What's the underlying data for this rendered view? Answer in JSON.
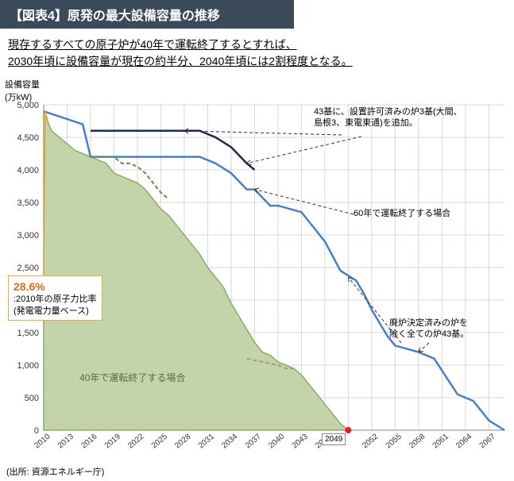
{
  "title": "【図表4】原発の最大設備容量の推移",
  "subtitle_l1": "現存するすべての原子炉が40年で運転終了するとすれば、",
  "subtitle_l2": "2030年頃に設備容量が現在の約半分、2040年頃には2割程度となる。",
  "ylabel_l1": "設備容量",
  "ylabel_l2": "(万kW)",
  "source": "(出所: 資源エネルギー庁)",
  "chart": {
    "type": "line+area",
    "xlim": [
      2010,
      2069
    ],
    "ylim": [
      0,
      5000
    ],
    "ytick_step": 500,
    "xticks": [
      2010,
      2013,
      2016,
      2019,
      2022,
      2025,
      2028,
      2031,
      2034,
      2037,
      2040,
      2043,
      2046,
      2049,
      2052,
      2055,
      2058,
      2061,
      2064,
      2067
    ],
    "yticks": [
      0,
      500,
      1000,
      1500,
      2000,
      2500,
      3000,
      3500,
      4000,
      4500,
      5000
    ],
    "background_color": "#ffffff",
    "grid_color": "#d8d8d8",
    "axis_color": "#888888",
    "area_color": "#c2d4a8",
    "area_edge_color": "#8fa86c",
    "line_blue": "#4a7fc4",
    "line_navy": "#1a2a4a",
    "line_green_dash": "#6a8a4a",
    "line_khaki_dash": "#a0a060",
    "callout_border": "#e6a64a",
    "callout_text": "#d4691a",
    "red_dot": "#e02020",
    "series_area_40yr": [
      [
        2010,
        4900
      ],
      [
        2011,
        4600
      ],
      [
        2012,
        4500
      ],
      [
        2013,
        4400
      ],
      [
        2014,
        4300
      ],
      [
        2015,
        4250
      ],
      [
        2016,
        4200
      ],
      [
        2017,
        4150
      ],
      [
        2018,
        4100
      ],
      [
        2019,
        3950
      ],
      [
        2020,
        3900
      ],
      [
        2021,
        3850
      ],
      [
        2022,
        3800
      ],
      [
        2023,
        3700
      ],
      [
        2024,
        3550
      ],
      [
        2025,
        3400
      ],
      [
        2026,
        3300
      ],
      [
        2027,
        3150
      ],
      [
        2028,
        3000
      ],
      [
        2029,
        2850
      ],
      [
        2030,
        2700
      ],
      [
        2031,
        2500
      ],
      [
        2032,
        2350
      ],
      [
        2033,
        2200
      ],
      [
        2034,
        1950
      ],
      [
        2035,
        1750
      ],
      [
        2036,
        1550
      ],
      [
        2037,
        1350
      ],
      [
        2038,
        1200
      ],
      [
        2039,
        1150
      ],
      [
        2040,
        1050
      ],
      [
        2041,
        1000
      ],
      [
        2042,
        950
      ],
      [
        2043,
        850
      ],
      [
        2044,
        700
      ],
      [
        2045,
        550
      ],
      [
        2046,
        400
      ],
      [
        2047,
        250
      ],
      [
        2048,
        100
      ],
      [
        2049,
        0
      ]
    ],
    "series_blue_60yr": [
      [
        2010,
        4900
      ],
      [
        2015,
        4700
      ],
      [
        2016,
        4200
      ],
      [
        2030,
        4200
      ],
      [
        2032,
        4100
      ],
      [
        2034,
        3950
      ],
      [
        2036,
        3700
      ],
      [
        2037,
        3700
      ],
      [
        2039,
        3450
      ],
      [
        2040,
        3450
      ],
      [
        2043,
        3350
      ],
      [
        2044,
        3200
      ],
      [
        2046,
        2900
      ],
      [
        2048,
        2450
      ],
      [
        2050,
        2300
      ],
      [
        2051,
        2100
      ],
      [
        2052,
        1850
      ],
      [
        2054,
        1450
      ],
      [
        2055,
        1300
      ],
      [
        2058,
        1200
      ],
      [
        2060,
        1100
      ],
      [
        2063,
        550
      ],
      [
        2065,
        450
      ],
      [
        2067,
        150
      ],
      [
        2069,
        0
      ]
    ],
    "series_navy_add3": [
      [
        2016,
        4600
      ],
      [
        2030,
        4600
      ],
      [
        2032,
        4500
      ],
      [
        2034,
        4350
      ],
      [
        2036,
        4100
      ],
      [
        2037,
        4000
      ]
    ],
    "series_green_dash": [
      [
        2016,
        4200
      ],
      [
        2019,
        4200
      ],
      [
        2020,
        4100
      ],
      [
        2021,
        4100
      ],
      [
        2022,
        4050
      ],
      [
        2023,
        3950
      ],
      [
        2024,
        3800
      ],
      [
        2025,
        3650
      ],
      [
        2026,
        3550
      ]
    ],
    "series_khaki_dash": [
      [
        2036,
        1100
      ],
      [
        2040,
        1000
      ],
      [
        2041,
        950
      ],
      [
        2042,
        950
      ]
    ]
  },
  "callout": {
    "pct": "28.6%",
    "l1": ":2010年の原子力比率",
    "l2": "(発電電力量ベース)"
  },
  "area_label": "40年で運転終了する場合",
  "ann_top": {
    "l1": "43基に、設置許可済みの炉3基(大間、",
    "l2": "島根3、東電東通)を追加。"
  },
  "ann_mid": "60年で運転終了する場合",
  "ann_bot": {
    "l1": "廃炉決定済みの炉を",
    "l2": "除く全ての炉43基。"
  },
  "xhl": "2049"
}
